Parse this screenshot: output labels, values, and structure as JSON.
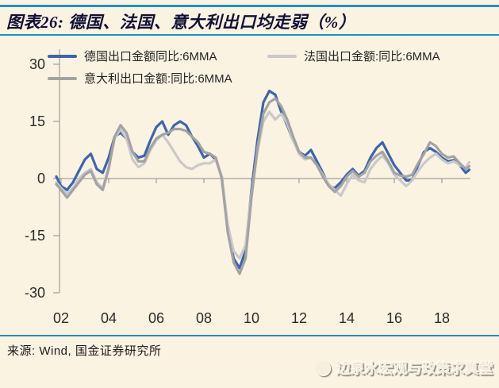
{
  "title": "图表26:  德国、法国、意大利出口均走弱（%）",
  "source": "来源: Wind, 国金证券研究所",
  "watermark": "边泉水宏观与政策求真堂",
  "colors": {
    "background": "#fbf3e2",
    "rule_blue": "#1e8fc6",
    "axis": "#8c8c8c",
    "germany_line": "#3e64ad",
    "france_line": "#c9c9c9",
    "italy_line": "#a3a3a3"
  },
  "chart_data": {
    "type": "line",
    "title": "图表26: 德国、法国、意大利出口均走弱（%）",
    "xlabel": "",
    "ylabel": "",
    "legend_position": "top-inside",
    "grid": false,
    "ylim": [
      -30,
      30
    ],
    "xlim": [
      2001.7,
      2019.3
    ],
    "y_ticks": [
      30,
      15,
      0,
      -15,
      -30
    ],
    "x_tick_years": [
      2002,
      2004,
      2006,
      2008,
      2010,
      2012,
      2014,
      2016,
      2018
    ],
    "x_tick_labels": [
      "02",
      "04",
      "06",
      "08",
      "10",
      "12",
      "14",
      "16",
      "18"
    ],
    "x": [
      2001.8,
      2002.0,
      2002.25,
      2002.5,
      2002.75,
      2003.0,
      2003.25,
      2003.5,
      2003.75,
      2004.0,
      2004.25,
      2004.5,
      2004.75,
      2005.0,
      2005.25,
      2005.5,
      2005.75,
      2006.0,
      2006.25,
      2006.5,
      2006.75,
      2007.0,
      2007.25,
      2007.5,
      2007.75,
      2008.0,
      2008.25,
      2008.5,
      2008.75,
      2009.0,
      2009.25,
      2009.5,
      2009.75,
      2010.0,
      2010.25,
      2010.5,
      2010.75,
      2011.0,
      2011.25,
      2011.5,
      2011.75,
      2012.0,
      2012.25,
      2012.5,
      2012.75,
      2013.0,
      2013.25,
      2013.5,
      2013.75,
      2014.0,
      2014.25,
      2014.5,
      2014.75,
      2015.0,
      2015.25,
      2015.5,
      2015.75,
      2016.0,
      2016.25,
      2016.5,
      2016.75,
      2017.0,
      2017.25,
      2017.5,
      2017.75,
      2018.0,
      2018.25,
      2018.5,
      2018.75,
      2019.0,
      2019.15
    ],
    "series": [
      {
        "name": "德国出口金额同比:6MMA",
        "color": "#3e64ad",
        "values": [
          0.5,
          -2.0,
          -3.0,
          -1.0,
          2.0,
          5.0,
          6.5,
          2.5,
          1.5,
          5.5,
          11.0,
          12.0,
          10.5,
          7.0,
          5.5,
          6.0,
          10.0,
          13.5,
          15.0,
          11.5,
          14.0,
          15.0,
          14.0,
          11.0,
          8.5,
          5.5,
          6.5,
          5.0,
          0.5,
          -13.0,
          -21.0,
          -23.5,
          -19.0,
          -3.0,
          10.0,
          20.0,
          23.0,
          22.0,
          17.5,
          14.0,
          10.0,
          7.0,
          6.0,
          7.5,
          4.5,
          1.5,
          -2.0,
          -2.5,
          -1.0,
          1.0,
          2.5,
          0.8,
          2.0,
          5.5,
          8.0,
          9.5,
          6.5,
          3.5,
          1.5,
          -0.5,
          -0.5,
          3.5,
          7.0,
          8.0,
          7.0,
          5.5,
          4.5,
          4.8,
          3.5,
          1.5,
          2.3
        ]
      },
      {
        "name": "法国出口金额:同比:6MMA",
        "color": "#c9c9c9",
        "values": [
          -1.0,
          -2.5,
          -4.0,
          -2.5,
          0.0,
          1.5,
          2.5,
          -1.0,
          -2.5,
          3.0,
          10.5,
          13.0,
          10.5,
          5.0,
          3.0,
          4.0,
          7.5,
          10.0,
          11.5,
          9.5,
          7.0,
          4.5,
          3.0,
          2.5,
          3.5,
          4.0,
          4.0,
          5.0,
          0.5,
          -12.0,
          -19.0,
          -21.0,
          -17.5,
          -4.0,
          7.0,
          15.0,
          17.5,
          15.5,
          17.0,
          14.5,
          10.0,
          6.5,
          5.0,
          5.5,
          3.5,
          1.0,
          -1.5,
          -3.0,
          -4.5,
          -1.5,
          1.0,
          -0.5,
          -1.0,
          2.5,
          4.5,
          6.0,
          4.0,
          1.0,
          -0.5,
          -2.0,
          -0.5,
          2.0,
          4.0,
          5.5,
          6.5,
          5.0,
          4.0,
          4.5,
          3.5,
          2.8,
          4.3
        ]
      },
      {
        "name": "意大利出口金额:同比:6MMA",
        "color": "#a3a3a3",
        "values": [
          -1.5,
          -3.0,
          -5.0,
          -3.0,
          -1.0,
          1.0,
          2.0,
          -1.5,
          -3.0,
          2.5,
          11.0,
          14.0,
          12.0,
          7.0,
          4.5,
          4.5,
          8.0,
          10.5,
          11.5,
          12.0,
          13.0,
          13.0,
          12.5,
          11.0,
          9.5,
          7.0,
          6.5,
          5.5,
          0.0,
          -14.0,
          -22.0,
          -25.0,
          -21.0,
          -5.0,
          8.0,
          17.0,
          20.0,
          21.0,
          19.0,
          15.5,
          11.0,
          7.0,
          5.5,
          5.5,
          3.5,
          0.5,
          -2.0,
          -3.5,
          -2.0,
          0.5,
          2.0,
          0.5,
          1.5,
          4.5,
          6.0,
          7.0,
          4.5,
          1.5,
          0.8,
          0.5,
          1.0,
          4.0,
          6.5,
          9.5,
          8.5,
          6.5,
          5.5,
          5.8,
          4.0,
          2.5,
          3.2
        ]
      }
    ]
  }
}
